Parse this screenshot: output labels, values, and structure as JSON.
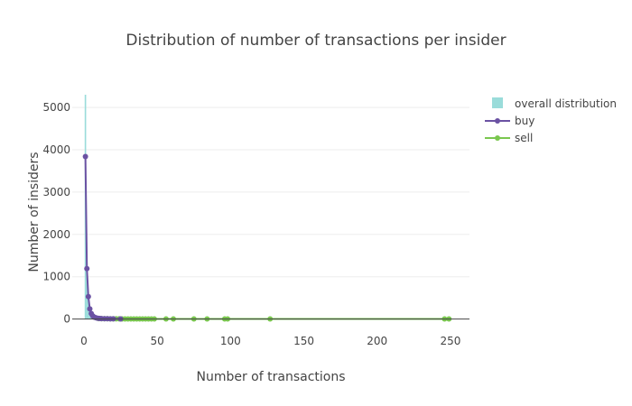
{
  "chart_data": {
    "type": "line",
    "title": "Distribution of number of transactions per insider",
    "xlabel": "Number of transactions",
    "ylabel": "Number of insiders",
    "xlim": [
      -8,
      263
    ],
    "ylim": [
      -30,
      5300
    ],
    "x_ticks": [
      0,
      50,
      100,
      150,
      200,
      250
    ],
    "y_ticks": [
      0,
      1000,
      2000,
      3000,
      4000,
      5000
    ],
    "grid": true,
    "legend_placement": "top-right",
    "series": [
      {
        "name": "overall distribution",
        "kind": "histogram",
        "color": "#8fd8d6",
        "x": [
          1,
          2,
          3,
          4,
          5,
          6,
          7,
          8
        ],
        "values": [
          5300,
          1350,
          560,
          260,
          120,
          60,
          30,
          15
        ]
      },
      {
        "name": "buy",
        "kind": "line",
        "color": "#6b52a3",
        "x": [
          1,
          2,
          3,
          4,
          5,
          6,
          7,
          8,
          9,
          10,
          11,
          12,
          14,
          16,
          18,
          20,
          25
        ],
        "y": [
          3840,
          1190,
          530,
          240,
          130,
          75,
          45,
          30,
          20,
          15,
          12,
          10,
          8,
          6,
          5,
          4,
          2
        ]
      },
      {
        "name": "sell",
        "kind": "line",
        "color": "#7ac74f",
        "x": [
          10,
          12,
          14,
          16,
          18,
          20,
          22,
          24,
          26,
          28,
          30,
          32,
          34,
          36,
          38,
          40,
          42,
          44,
          46,
          48,
          56,
          61,
          75,
          84,
          96,
          98,
          127,
          246,
          249
        ],
        "y": [
          10,
          8,
          7,
          6,
          5,
          5,
          4,
          4,
          3,
          3,
          3,
          2,
          2,
          2,
          2,
          2,
          2,
          2,
          1,
          1,
          1,
          1,
          1,
          1,
          1,
          1,
          1,
          1,
          1
        ]
      }
    ]
  }
}
